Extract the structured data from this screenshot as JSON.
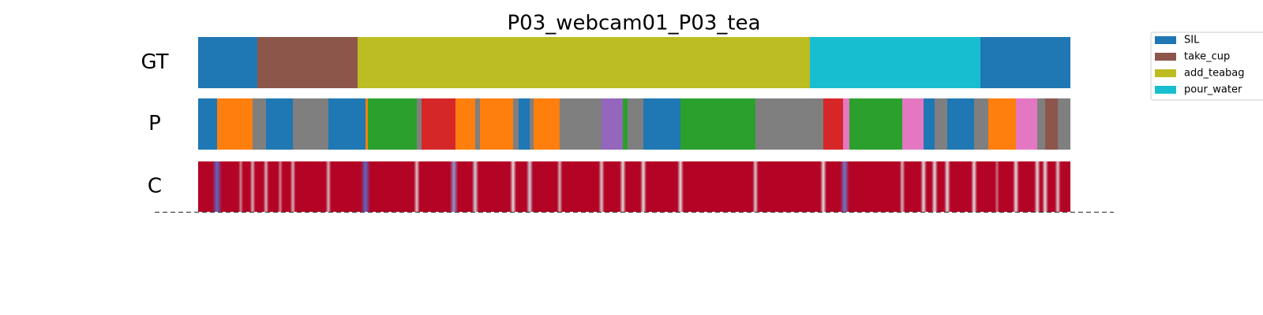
{
  "chart_data": {
    "type": "segmentation",
    "title": "P03_webcam01_P03_tea",
    "xlim": [
      0,
      1105
    ],
    "legend": "outside-right",
    "classes": [
      {
        "name": "SIL",
        "color": "#1f77b4"
      },
      {
        "name": "take_cup",
        "color": "#8c564b"
      },
      {
        "name": "add_teabag",
        "color": "#bcbd22"
      },
      {
        "name": "pour_water",
        "color": "#17becf"
      }
    ],
    "rows": [
      {
        "label": "GT",
        "segments": [
          {
            "start": 0,
            "end": 75,
            "class": 0
          },
          {
            "start": 75,
            "end": 202,
            "class": 1
          },
          {
            "start": 202,
            "end": 775,
            "class": 2
          },
          {
            "start": 775,
            "end": 991,
            "class": 3
          },
          {
            "start": 991,
            "end": 1105,
            "class": 0
          }
        ]
      },
      {
        "label": "P",
        "segments": [
          {
            "start": 0,
            "end": 24,
            "color": "#1f77b4"
          },
          {
            "start": 24,
            "end": 69,
            "color": "#ff7f0e"
          },
          {
            "start": 69,
            "end": 86,
            "color": "#7f7f7f"
          },
          {
            "start": 86,
            "end": 120,
            "color": "#1f77b4"
          },
          {
            "start": 120,
            "end": 165,
            "color": "#7f7f7f"
          },
          {
            "start": 165,
            "end": 212,
            "color": "#1f77b4"
          },
          {
            "start": 212,
            "end": 215,
            "color": "#ff7f0e"
          },
          {
            "start": 215,
            "end": 277,
            "color": "#2ca02c"
          },
          {
            "start": 277,
            "end": 283,
            "color": "#7f7f7f"
          },
          {
            "start": 283,
            "end": 326,
            "color": "#d62728"
          },
          {
            "start": 326,
            "end": 351,
            "color": "#ff7f0e"
          },
          {
            "start": 351,
            "end": 357,
            "color": "#7f7f7f"
          },
          {
            "start": 357,
            "end": 399,
            "color": "#ff7f0e"
          },
          {
            "start": 399,
            "end": 406,
            "color": "#7f7f7f"
          },
          {
            "start": 406,
            "end": 420,
            "color": "#1f77b4"
          },
          {
            "start": 420,
            "end": 425,
            "color": "#7f7f7f"
          },
          {
            "start": 425,
            "end": 458,
            "color": "#ff7f0e"
          },
          {
            "start": 458,
            "end": 511,
            "color": "#7f7f7f"
          },
          {
            "start": 511,
            "end": 538,
            "color": "#9467bd"
          },
          {
            "start": 538,
            "end": 544,
            "color": "#2ca02c"
          },
          {
            "start": 544,
            "end": 564,
            "color": "#7f7f7f"
          },
          {
            "start": 564,
            "end": 611,
            "color": "#1f77b4"
          },
          {
            "start": 611,
            "end": 706,
            "color": "#2ca02c"
          },
          {
            "start": 706,
            "end": 792,
            "color": "#7f7f7f"
          },
          {
            "start": 792,
            "end": 817,
            "color": "#d62728"
          },
          {
            "start": 817,
            "end": 825,
            "color": "#e377c2"
          },
          {
            "start": 825,
            "end": 892,
            "color": "#2ca02c"
          },
          {
            "start": 892,
            "end": 919,
            "color": "#e377c2"
          },
          {
            "start": 919,
            "end": 933,
            "color": "#1f77b4"
          },
          {
            "start": 933,
            "end": 949,
            "color": "#7f7f7f"
          },
          {
            "start": 949,
            "end": 983,
            "color": "#1f77b4"
          },
          {
            "start": 983,
            "end": 1001,
            "color": "#7f7f7f"
          },
          {
            "start": 1001,
            "end": 1036,
            "color": "#ff7f0e"
          },
          {
            "start": 1036,
            "end": 1063,
            "color": "#e377c2"
          },
          {
            "start": 1063,
            "end": 1073,
            "color": "#7f7f7f"
          },
          {
            "start": 1073,
            "end": 1089,
            "color": "#8c564b"
          },
          {
            "start": 1089,
            "end": 1105,
            "color": "#7f7f7f"
          }
        ]
      },
      {
        "label": "C",
        "base": 1,
        "dips": [
          {
            "x": 24,
            "value": 0.1
          },
          {
            "x": 54,
            "value": 0.7
          },
          {
            "x": 69,
            "value": 0.6
          },
          {
            "x": 86,
            "value": 0.6
          },
          {
            "x": 104,
            "value": 0.7
          },
          {
            "x": 120,
            "value": 0.6
          },
          {
            "x": 165,
            "value": 0.6
          },
          {
            "x": 212,
            "value": 0.1
          },
          {
            "x": 277,
            "value": 0.55
          },
          {
            "x": 324,
            "value": 0.25
          },
          {
            "x": 351,
            "value": 0.45
          },
          {
            "x": 399,
            "value": 0.5
          },
          {
            "x": 420,
            "value": 0.45
          },
          {
            "x": 458,
            "value": 0.6
          },
          {
            "x": 511,
            "value": 0.55
          },
          {
            "x": 538,
            "value": 0.5
          },
          {
            "x": 564,
            "value": 0.5
          },
          {
            "x": 611,
            "value": 0.5
          },
          {
            "x": 706,
            "value": 0.55
          },
          {
            "x": 792,
            "value": 0.5
          },
          {
            "x": 819,
            "value": 0.15
          },
          {
            "x": 892,
            "value": 0.6
          },
          {
            "x": 919,
            "value": 0.5
          },
          {
            "x": 933,
            "value": 0.5
          },
          {
            "x": 949,
            "value": 0.5
          },
          {
            "x": 983,
            "value": 0.5
          },
          {
            "x": 1012,
            "value": 0.75
          },
          {
            "x": 1036,
            "value": 0.5
          },
          {
            "x": 1063,
            "value": 0.5
          },
          {
            "x": 1073,
            "value": 0.5
          },
          {
            "x": 1089,
            "value": 0.55
          }
        ]
      }
    ]
  }
}
